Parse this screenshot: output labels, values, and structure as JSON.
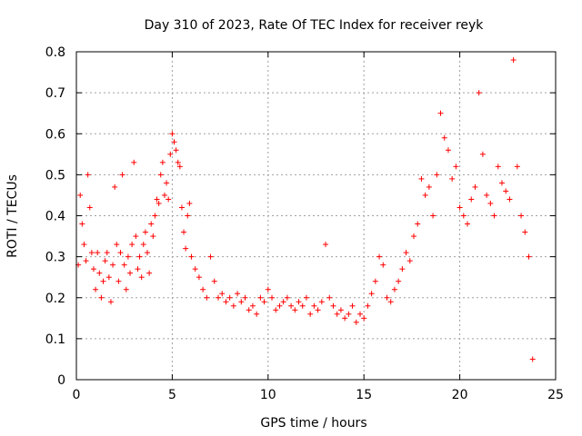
{
  "chart_data": {
    "type": "scatter",
    "title": "Day 310 of 2023, Rate Of TEC Index for receiver reyk",
    "xlabel": "GPS time / hours",
    "ylabel": "ROTI / TECUs",
    "xlim": [
      0,
      25
    ],
    "ylim": [
      0,
      0.8
    ],
    "xticks": [
      "0",
      "5",
      "10",
      "15",
      "20",
      "25"
    ],
    "yticks": [
      "0",
      "0.1",
      "0.2",
      "0.3",
      "0.4",
      "0.5",
      "0.6",
      "0.7",
      "0.8"
    ],
    "grid": true,
    "marker": "plus",
    "color": "#ff0000",
    "x": [
      0.1,
      0.2,
      0.3,
      0.4,
      0.5,
      0.6,
      0.7,
      0.8,
      0.9,
      1.0,
      1.1,
      1.2,
      1.3,
      1.4,
      1.5,
      1.6,
      1.7,
      1.8,
      1.9,
      2.0,
      2.1,
      2.2,
      2.3,
      2.4,
      2.5,
      2.6,
      2.7,
      2.8,
      2.9,
      3.0,
      3.1,
      3.2,
      3.3,
      3.4,
      3.5,
      3.6,
      3.7,
      3.8,
      3.9,
      4.0,
      4.1,
      4.2,
      4.3,
      4.4,
      4.5,
      4.6,
      4.7,
      4.8,
      4.9,
      5.0,
      5.1,
      5.2,
      5.3,
      5.4,
      5.5,
      5.6,
      5.7,
      5.8,
      5.9,
      6.0,
      6.2,
      6.4,
      6.6,
      6.8,
      7.0,
      7.2,
      7.4,
      7.6,
      7.8,
      8.0,
      8.2,
      8.4,
      8.6,
      8.8,
      9.0,
      9.2,
      9.4,
      9.6,
      9.8,
      10.0,
      10.2,
      10.4,
      10.6,
      10.8,
      11.0,
      11.2,
      11.4,
      11.6,
      11.8,
      12.0,
      12.2,
      12.4,
      12.6,
      12.8,
      13.0,
      13.2,
      13.4,
      13.6,
      13.8,
      14.0,
      14.2,
      14.4,
      14.6,
      14.8,
      15.0,
      15.2,
      15.4,
      15.6,
      15.8,
      16.0,
      16.2,
      16.4,
      16.6,
      16.8,
      17.0,
      17.2,
      17.4,
      17.6,
      17.8,
      18.0,
      18.2,
      18.4,
      18.6,
      18.8,
      19.0,
      19.2,
      19.4,
      19.6,
      19.8,
      20.0,
      20.2,
      20.4,
      20.6,
      20.8,
      21.0,
      21.2,
      21.4,
      21.6,
      21.8,
      22.0,
      22.2,
      22.4,
      22.6,
      22.8,
      23.0,
      23.2,
      23.4,
      23.6,
      23.8
    ],
    "y": [
      0.28,
      0.45,
      0.38,
      0.33,
      0.29,
      0.5,
      0.42,
      0.31,
      0.27,
      0.22,
      0.31,
      0.26,
      0.2,
      0.24,
      0.29,
      0.31,
      0.25,
      0.19,
      0.28,
      0.47,
      0.33,
      0.24,
      0.31,
      0.5,
      0.28,
      0.22,
      0.3,
      0.26,
      0.33,
      0.53,
      0.35,
      0.27,
      0.3,
      0.25,
      0.33,
      0.36,
      0.31,
      0.26,
      0.38,
      0.35,
      0.4,
      0.44,
      0.43,
      0.5,
      0.53,
      0.45,
      0.48,
      0.44,
      0.55,
      0.6,
      0.58,
      0.56,
      0.53,
      0.52,
      0.42,
      0.36,
      0.32,
      0.4,
      0.43,
      0.3,
      0.27,
      0.25,
      0.22,
      0.2,
      0.3,
      0.24,
      0.2,
      0.21,
      0.19,
      0.2,
      0.18,
      0.21,
      0.19,
      0.2,
      0.17,
      0.18,
      0.16,
      0.2,
      0.19,
      0.22,
      0.2,
      0.17,
      0.18,
      0.19,
      0.2,
      0.18,
      0.17,
      0.19,
      0.18,
      0.2,
      0.16,
      0.18,
      0.17,
      0.19,
      0.33,
      0.2,
      0.18,
      0.16,
      0.17,
      0.15,
      0.16,
      0.18,
      0.14,
      0.16,
      0.15,
      0.18,
      0.21,
      0.24,
      0.3,
      0.28,
      0.2,
      0.19,
      0.22,
      0.24,
      0.27,
      0.31,
      0.29,
      0.35,
      0.38,
      0.49,
      0.45,
      0.47,
      0.4,
      0.5,
      0.65,
      0.59,
      0.56,
      0.49,
      0.52,
      0.42,
      0.4,
      0.38,
      0.44,
      0.47,
      0.7,
      0.55,
      0.45,
      0.43,
      0.4,
      0.52,
      0.48,
      0.46,
      0.44,
      0.78,
      0.52,
      0.4,
      0.36,
      0.3,
      0.05
    ]
  }
}
